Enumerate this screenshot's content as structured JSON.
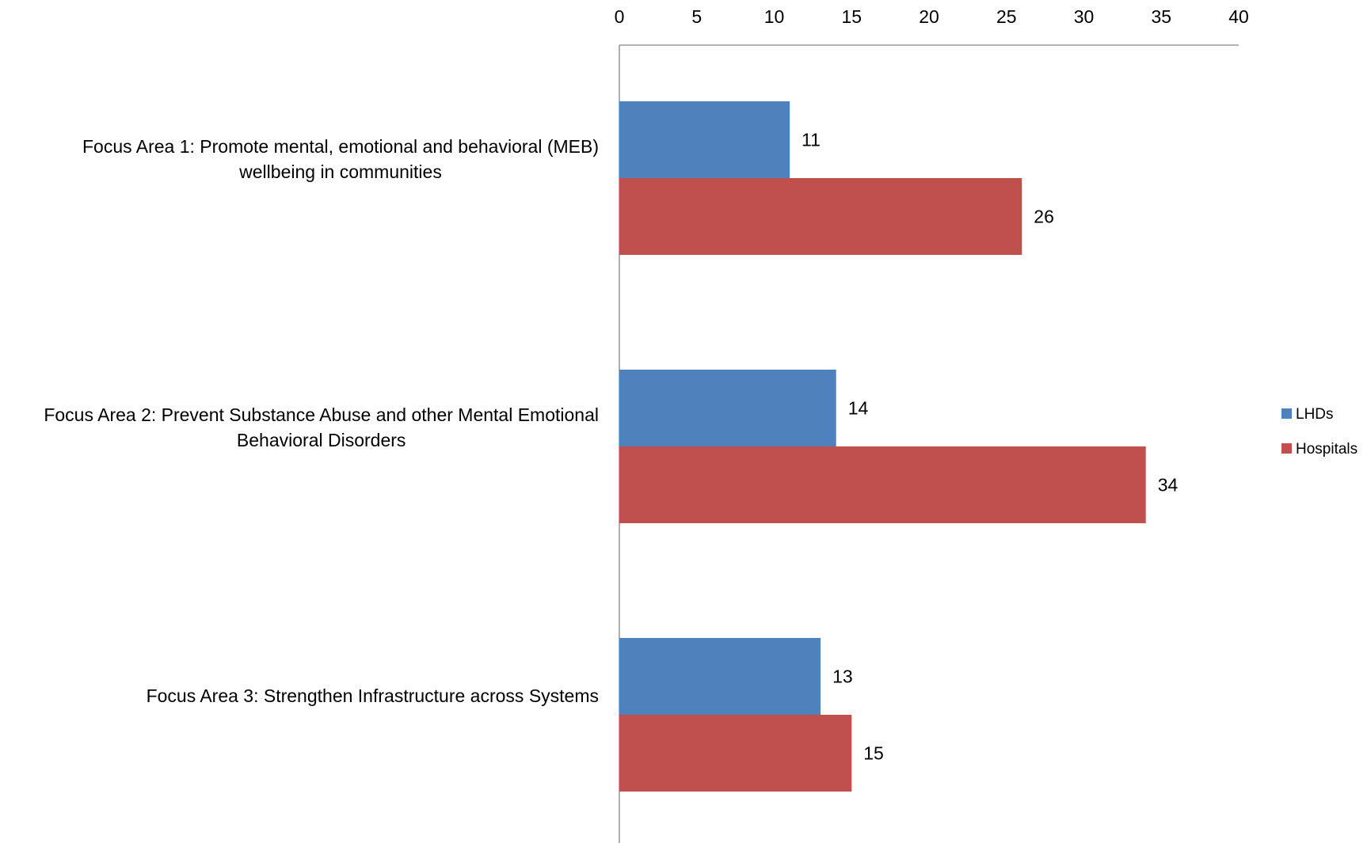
{
  "chart_data": {
    "type": "bar",
    "orientation": "horizontal",
    "title": "",
    "xlabel": "",
    "ylabel": "",
    "xlim": [
      0,
      40
    ],
    "x_ticks": [
      0,
      5,
      10,
      15,
      20,
      25,
      30,
      35,
      40
    ],
    "x_axis_position": "top",
    "grid": false,
    "legend_position": "right",
    "categories": [
      [
        "Focus Area 1: Promote mental, emotional and behavioral (MEB)",
        "wellbeing in communities"
      ],
      [
        "Focus Area 2: Prevent Substance Abuse and other Mental Emotional",
        "Behavioral Disorders"
      ],
      [
        "Focus Area 3: Strengthen Infrastructure across Systems"
      ]
    ],
    "series": [
      {
        "name": "LHDs",
        "color": "#4F81BD",
        "values": [
          11,
          14,
          13
        ]
      },
      {
        "name": "Hospitals",
        "color": "#C0504D",
        "values": [
          26,
          34,
          15
        ]
      }
    ],
    "data_labels": true
  }
}
